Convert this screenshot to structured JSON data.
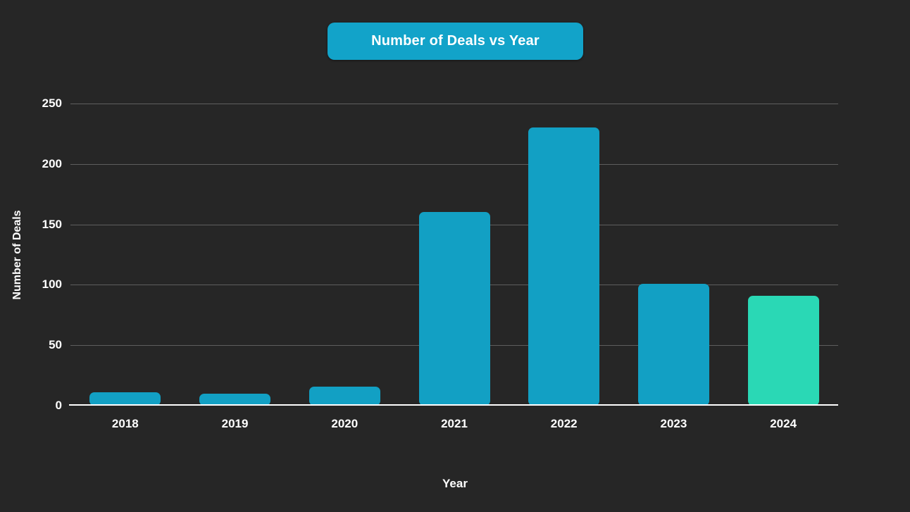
{
  "chart_data": {
    "type": "bar",
    "title": "Number of Deals vs Year",
    "xlabel": "Year",
    "ylabel": "Number of Deals",
    "categories": [
      "2018",
      "2019",
      "2020",
      "2021",
      "2022",
      "2023",
      "2024"
    ],
    "values": [
      11,
      10,
      16,
      160,
      230,
      101,
      91
    ],
    "yticks": [
      0,
      50,
      100,
      150,
      200,
      250
    ],
    "ylim": [
      0,
      250
    ],
    "grid": true,
    "legend": "none",
    "colors": {
      "background": "#262626",
      "bar_default": "#12A0C4",
      "bar_highlight": "#2AD8B5",
      "title_background": "#12A3C9",
      "gridline": "#5E5E5E",
      "axis_line": "#FFFFFF",
      "text": "#FFFFFF"
    },
    "bar_colors": [
      "#12A0C4",
      "#12A0C4",
      "#12A0C4",
      "#12A0C4",
      "#12A0C4",
      "#12A0C4",
      "#2AD8B5"
    ]
  }
}
